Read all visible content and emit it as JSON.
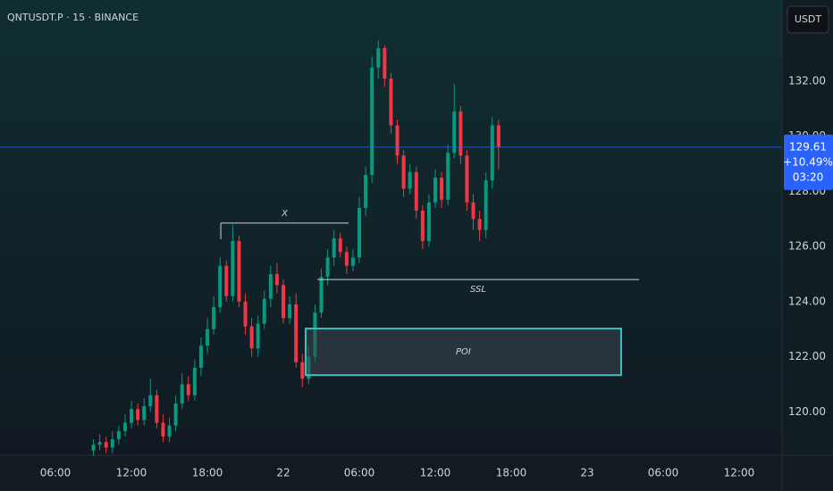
{
  "chart_data": {
    "type": "candlestick",
    "title": "QNTUSDT.P · 15 · BINANCE",
    "currency": "USDT",
    "up_color": "#089981",
    "down_color": "#f23645",
    "x": [
      9,
      9.5,
      10,
      10.5,
      11,
      11.5,
      12,
      12.5,
      13,
      13.5,
      14,
      14.5,
      15,
      15.5,
      16,
      16.5,
      17,
      17.5,
      18,
      18.5,
      19,
      19.5,
      20,
      20.5,
      21,
      21.5,
      22,
      22.5,
      23,
      23.5,
      24,
      24.5,
      25,
      25.5,
      26,
      26.5,
      27,
      27.5,
      28,
      28.5,
      29,
      29.5,
      30,
      30.5,
      31,
      31.5,
      32,
      32.5,
      33,
      33.5,
      34,
      34.5,
      35,
      35.5,
      36,
      36.5,
      37,
      37.5,
      38,
      38.5,
      39,
      39.5,
      40,
      40.5,
      41
    ],
    "open": [
      118.6,
      118.8,
      118.9,
      118.7,
      119.0,
      119.3,
      119.6,
      120.1,
      119.7,
      120.2,
      120.6,
      119.6,
      119.1,
      119.5,
      120.3,
      121.0,
      120.6,
      121.6,
      122.4,
      123.0,
      123.8,
      125.3,
      124.2,
      126.2,
      124.0,
      123.1,
      122.3,
      123.2,
      124.1,
      125.0,
      124.6,
      123.4,
      123.9,
      121.8,
      121.2,
      122.0,
      123.6,
      124.9,
      125.6,
      126.3,
      125.8,
      125.3,
      125.6,
      127.4,
      128.6,
      132.5,
      133.2,
      132.1,
      130.4,
      129.3,
      128.1,
      128.7,
      127.3,
      126.2,
      127.6,
      128.5,
      127.7,
      129.4,
      130.9,
      129.3,
      127.6,
      127.0,
      126.6,
      128.4,
      130.4
    ],
    "high": [
      119.0,
      119.2,
      119.1,
      119.3,
      119.5,
      119.9,
      120.4,
      120.3,
      120.5,
      121.2,
      120.8,
      119.9,
      119.8,
      120.6,
      121.4,
      121.3,
      121.9,
      122.7,
      123.4,
      124.2,
      125.6,
      125.5,
      126.8,
      126.4,
      124.3,
      123.4,
      123.5,
      124.4,
      125.3,
      125.4,
      124.8,
      124.2,
      124.3,
      122.1,
      122.4,
      123.9,
      125.2,
      125.9,
      126.6,
      126.5,
      126.0,
      125.9,
      127.8,
      128.9,
      132.9,
      133.5,
      133.3,
      132.3,
      130.6,
      129.5,
      129.0,
      128.9,
      127.5,
      127.9,
      128.8,
      128.7,
      129.7,
      131.9,
      131.1,
      129.5,
      127.9,
      127.3,
      128.7,
      130.7,
      130.6
    ],
    "low": [
      118.4,
      118.6,
      118.5,
      118.5,
      118.8,
      119.1,
      119.4,
      119.5,
      119.5,
      120.0,
      119.4,
      118.9,
      118.9,
      119.3,
      120.1,
      120.4,
      120.4,
      121.3,
      122.1,
      122.8,
      123.6,
      124.0,
      124.0,
      123.8,
      122.8,
      122.0,
      122.0,
      123.0,
      123.8,
      124.3,
      123.2,
      123.2,
      121.6,
      120.9,
      121.0,
      121.8,
      123.4,
      124.6,
      125.3,
      125.6,
      125.0,
      125.1,
      125.4,
      127.1,
      128.3,
      132.1,
      131.8,
      130.1,
      129.0,
      127.8,
      127.9,
      127.0,
      125.9,
      126.0,
      127.4,
      127.4,
      127.5,
      129.2,
      129.0,
      127.3,
      126.6,
      126.2,
      126.3,
      128.1,
      128.8
    ],
    "close": [
      118.8,
      118.9,
      118.7,
      119.0,
      119.3,
      119.6,
      120.1,
      119.7,
      120.2,
      120.6,
      119.6,
      119.1,
      119.5,
      120.3,
      121.0,
      120.6,
      121.6,
      122.4,
      123.0,
      123.8,
      125.3,
      124.2,
      126.2,
      124.0,
      123.1,
      122.3,
      123.2,
      124.1,
      125.0,
      124.6,
      123.4,
      123.9,
      121.8,
      121.2,
      122.0,
      123.6,
      124.9,
      125.6,
      126.3,
      125.8,
      125.3,
      125.6,
      127.4,
      128.6,
      132.5,
      133.2,
      132.1,
      130.4,
      129.3,
      128.1,
      128.7,
      127.3,
      126.2,
      127.6,
      128.5,
      127.7,
      129.4,
      130.9,
      129.3,
      127.6,
      127.0,
      126.6,
      128.4,
      130.4,
      129.61
    ],
    "last_price": 129.61,
    "change_pct": {
      "value": 10.49,
      "label": "+10.49%"
    },
    "countdown": "03:20",
    "xlim": [
      1.62,
      63.39
    ],
    "ylim": [
      118.42,
      134.95
    ],
    "xticks": [
      {
        "value": 6,
        "label": "06:00"
      },
      {
        "value": 12,
        "label": "12:00"
      },
      {
        "value": 18,
        "label": "18:00"
      },
      {
        "value": 24,
        "label": "22"
      },
      {
        "value": 30,
        "label": "06:00"
      },
      {
        "value": 36,
        "label": "12:00"
      },
      {
        "value": 42,
        "label": "18:00"
      },
      {
        "value": 48,
        "label": "23"
      },
      {
        "value": 54,
        "label": "06:00"
      },
      {
        "value": 60,
        "label": "12:00"
      }
    ],
    "yticks": [
      {
        "value": 120,
        "label": "120.00"
      },
      {
        "value": 122,
        "label": "122.00"
      },
      {
        "value": 124,
        "label": "124.00"
      },
      {
        "value": 126,
        "label": "126.00"
      },
      {
        "value": 128,
        "label": "128.00"
      },
      {
        "value": 130,
        "label": "130.00"
      },
      {
        "value": 132,
        "label": "132.00"
      }
    ],
    "annotations": [
      {
        "text": "X",
        "kind": "line",
        "x": [
          19.06,
          29.15
        ],
        "y": 126.85
      },
      {
        "text": "SSL",
        "kind": "line",
        "x": [
          26.68,
          52.09
        ],
        "y": 124.8
      },
      {
        "text": "POI",
        "kind": "box",
        "x": [
          25.76,
          50.68
        ],
        "y": [
          121.33,
          123.02
        ]
      }
    ]
  }
}
